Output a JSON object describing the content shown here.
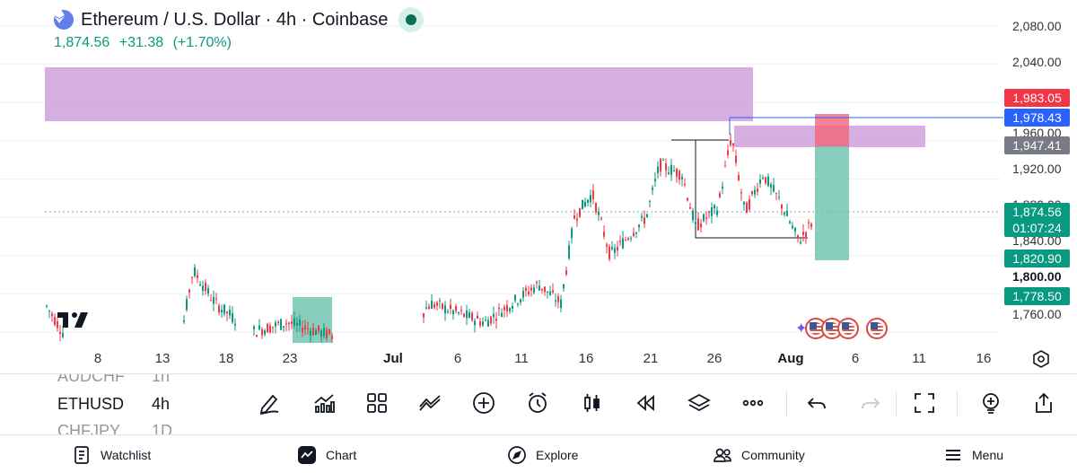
{
  "header": {
    "title": "Ethereum / U.S. Dollar · 4h · Coinbase",
    "last_price": "1,874.56",
    "change": "+31.38",
    "change_pct": "(+1.70%)"
  },
  "price_axis": {
    "labels": [
      "2,080.00",
      "2,040.00",
      "1,960.00",
      "1,920.00",
      "1,880.00",
      "1,840.00",
      "1,800.00",
      "1,760.00"
    ],
    "bold_label": "1,800.00",
    "tags": [
      {
        "label": "1,983.05",
        "color": "#f23645"
      },
      {
        "label": "1,978.43",
        "color": "#2962ff"
      },
      {
        "label": "1,947.41",
        "color": "#787b86"
      },
      {
        "label": "1,874.56",
        "sub": "01:07:24",
        "color": "#089981"
      },
      {
        "label": "1,820.90",
        "color": "#089981"
      },
      {
        "label": "1,778.50",
        "color": "#089981"
      }
    ]
  },
  "time_axis": {
    "labels": [
      "8",
      "13",
      "18",
      "23",
      "Jul",
      "6",
      "11",
      "16",
      "21",
      "26",
      "Aug",
      "6",
      "11",
      "16"
    ],
    "bold_labels": [
      "Jul",
      "Aug"
    ]
  },
  "colors": {
    "up": "#089981",
    "down": "#f23645",
    "zone": "#c893d8",
    "profit": "#5fbfa6",
    "stop": "#f0657a",
    "guide_line": "#2962ff"
  },
  "symbol_list": [
    {
      "symbol": "AUDCHF",
      "interval": "1h",
      "state": "faded"
    },
    {
      "symbol": "ETHUSD",
      "interval": "4h",
      "state": "active"
    },
    {
      "symbol": "CHFJPY",
      "interval": "1D",
      "state": "faded"
    }
  ],
  "toolbar_icons": [
    "pencil-icon",
    "indicators-icon",
    "layout-grid-icon",
    "compare-icon",
    "add-icon",
    "alert-clock-icon",
    "candles-icon",
    "replay-icon",
    "layers-icon",
    "more-icon",
    "undo-icon",
    "redo-icon",
    "fullscreen-icon",
    "idea-icon",
    "share-icon"
  ],
  "bottom_nav": [
    {
      "label": "Watchlist",
      "icon": "watchlist-icon"
    },
    {
      "label": "Chart",
      "icon": "chart-icon"
    },
    {
      "label": "Explore",
      "icon": "compass-icon"
    },
    {
      "label": "Community",
      "icon": "community-icon"
    },
    {
      "label": "Menu",
      "icon": "menu-icon"
    }
  ]
}
